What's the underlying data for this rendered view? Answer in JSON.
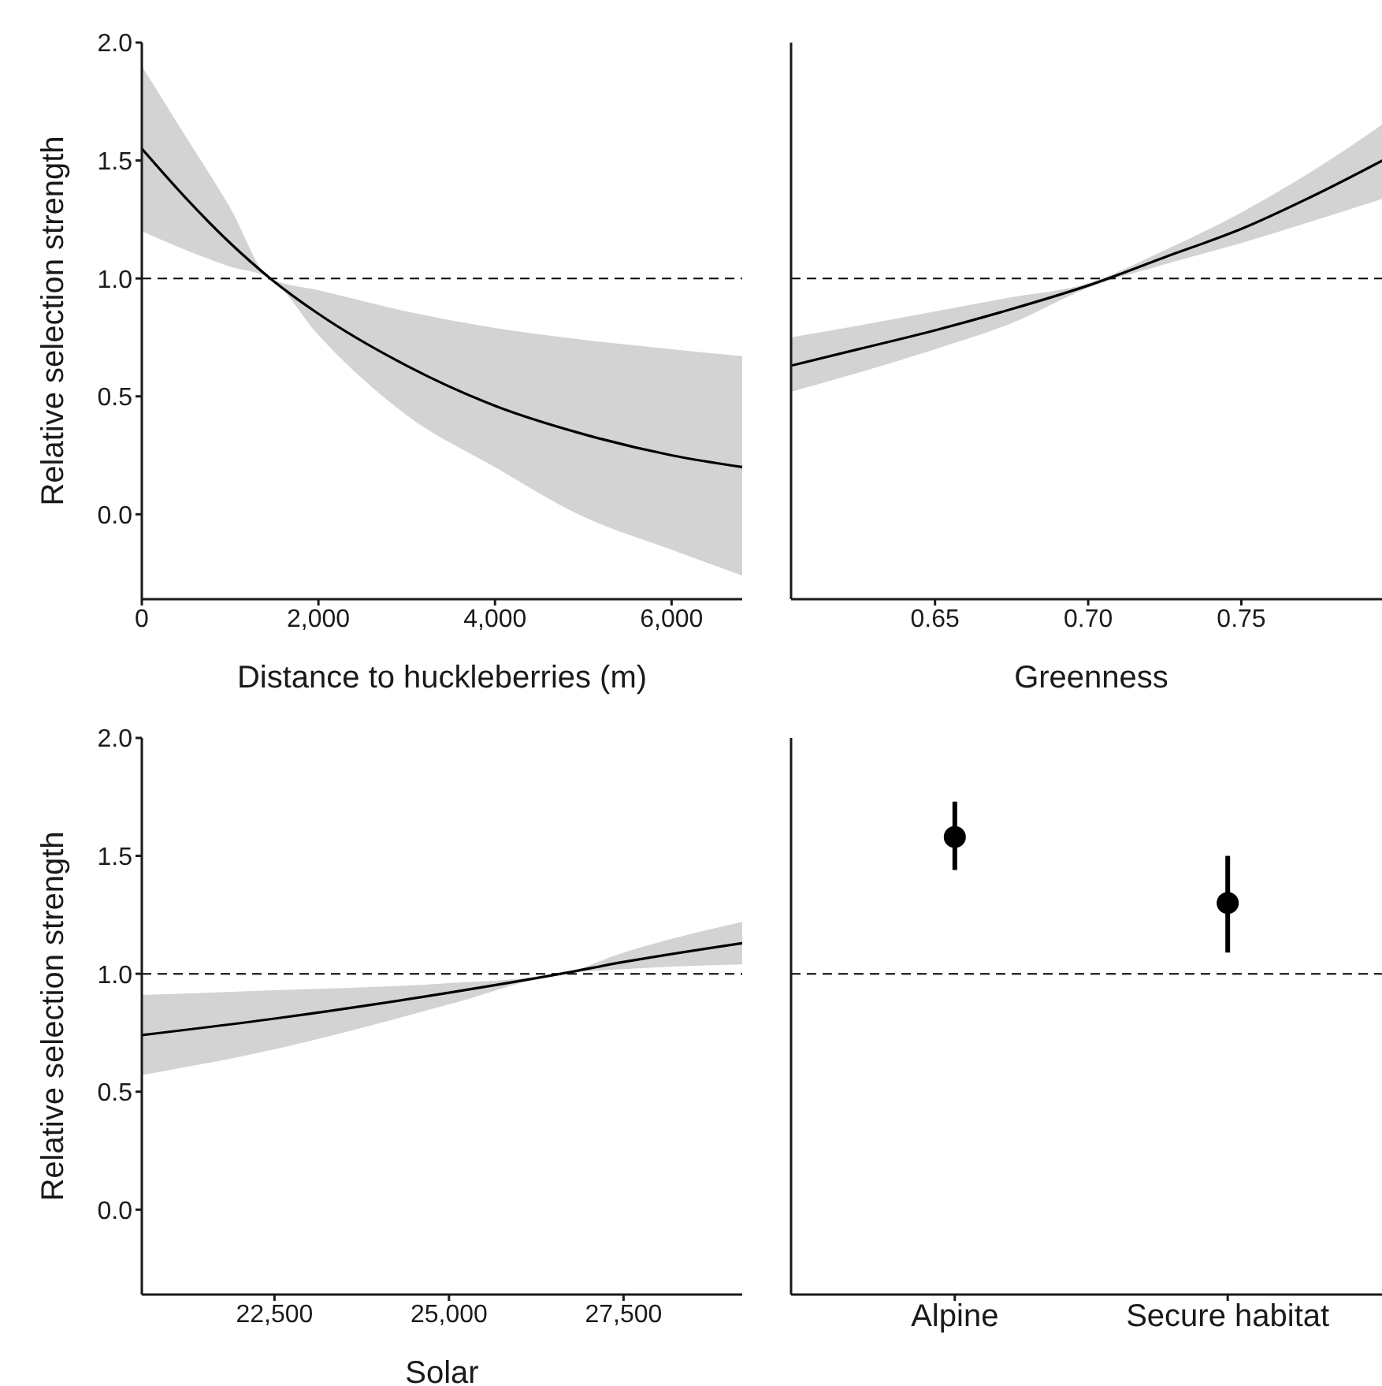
{
  "chart_data": [
    {
      "type": "line",
      "xlabel": "Distance to huckleberries (m)",
      "ylabel": "Relative selection strength",
      "x": [
        0,
        500,
        1000,
        1455,
        2000,
        3000,
        4000,
        5000,
        6000,
        6800
      ],
      "series": [
        {
          "color": "#000000",
          "values": [
            1.55,
            1.34,
            1.15,
            1.0,
            0.85,
            0.63,
            0.46,
            0.34,
            0.25,
            0.2
          ],
          "lower": [
            1.2,
            1.12,
            1.05,
            1.0,
            0.76,
            0.42,
            0.2,
            -0.01,
            -0.15,
            -0.26
          ],
          "upper": [
            1.9,
            1.6,
            1.3,
            1.0,
            0.95,
            0.86,
            0.79,
            0.74,
            0.7,
            0.67
          ]
        }
      ],
      "xlim": [
        0,
        6800
      ],
      "xticks": [
        0,
        {
          "value": 2000,
          "label": "2,000"
        },
        {
          "value": 4000,
          "label": "4,000"
        },
        {
          "value": 6000,
          "label": "6,000"
        }
      ],
      "ylim": [
        -0.36,
        2.0
      ],
      "yticks": [
        {
          "value": 0,
          "label": "0.0"
        },
        0.5,
        {
          "value": 1,
          "label": "1.0"
        },
        1.5,
        {
          "value": 2,
          "label": "2.0"
        }
      ],
      "ref_lines": [
        {
          "axis": "y",
          "value": 1,
          "line_style": "dashed",
          "color": "#000000"
        }
      ],
      "marker": "none"
    },
    {
      "type": "line",
      "xlabel": "Greenness",
      "x": [
        0.603,
        0.625,
        0.65,
        0.675,
        0.7,
        0.725,
        0.75,
        0.775,
        0.799
      ],
      "series": [
        {
          "color": "#000000",
          "values": [
            0.63,
            0.7,
            0.78,
            0.87,
            0.97,
            1.09,
            1.21,
            1.36,
            1.52
          ],
          "lower": [
            0.52,
            0.6,
            0.7,
            0.81,
            0.96,
            1.06,
            1.15,
            1.25,
            1.35
          ],
          "upper": [
            0.75,
            0.8,
            0.86,
            0.92,
            0.98,
            1.12,
            1.28,
            1.47,
            1.68
          ]
        }
      ],
      "xlim": [
        0.603,
        0.799
      ],
      "xticks": [
        0.65,
        {
          "value": 0.7,
          "label": "0.70"
        },
        0.75
      ],
      "ylim": [
        -0.36,
        2.0
      ],
      "yticks": [
        0,
        0.5,
        1,
        1.5,
        2
      ],
      "tick_labels": "x",
      "ref_lines": [
        {
          "axis": "y",
          "value": 1,
          "line_style": "dashed",
          "color": "#000000"
        }
      ],
      "marker": "none"
    },
    {
      "type": "line",
      "xlabel": "Solar",
      "ylabel": "Relative selection strength",
      "x": [
        20600,
        22500,
        25000,
        26600,
        27500,
        29200
      ],
      "series": [
        {
          "color": "#000000",
          "values": [
            0.74,
            0.81,
            0.92,
            1.0,
            1.05,
            1.13
          ],
          "lower": [
            0.57,
            0.68,
            0.87,
            1.0,
            1.02,
            1.04
          ],
          "upper": [
            0.91,
            0.93,
            0.96,
            1.0,
            1.09,
            1.22
          ]
        }
      ],
      "xlim": [
        20600,
        29200
      ],
      "xticks": [
        {
          "value": 22500,
          "label": "22,500"
        },
        {
          "value": 25000,
          "label": "25,000"
        },
        {
          "value": 27500,
          "label": "27,500"
        }
      ],
      "ylim": [
        -0.36,
        2.0
      ],
      "yticks": [
        {
          "value": 0,
          "label": "0.0"
        },
        0.5,
        {
          "value": 1,
          "label": "1.0"
        },
        1.5,
        {
          "value": 2,
          "label": "2.0"
        }
      ],
      "ref_lines": [
        {
          "axis": "y",
          "value": 1,
          "line_style": "dashed",
          "color": "#000000"
        }
      ],
      "marker": "none"
    },
    {
      "type": "scatter",
      "categories": [
        "Alpine",
        "Secure habitat"
      ],
      "series": [
        {
          "color": "#000000",
          "values": [
            1.58,
            1.3
          ],
          "errors": [
            [
              1.44,
              1.73
            ],
            [
              1.09,
              1.5
            ]
          ]
        }
      ],
      "ylim": [
        -0.36,
        2.0
      ],
      "yticks": [
        0,
        0.5,
        1,
        1.5,
        2
      ],
      "tick_labels": "x",
      "ref_lines": [
        {
          "axis": "y",
          "value": 1,
          "line_style": "dashed",
          "color": "#000000"
        }
      ],
      "marker": "circle"
    }
  ]
}
